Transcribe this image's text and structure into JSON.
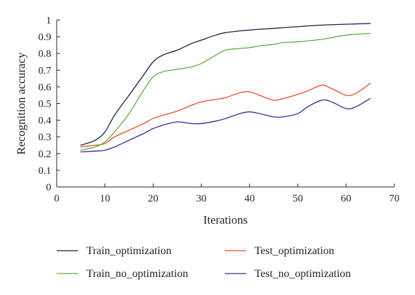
{
  "chart_data": {
    "type": "line",
    "xlabel": "Iterations",
    "ylabel": "Recognition accuracy",
    "xlim": [
      0,
      70
    ],
    "ylim": [
      0,
      1
    ],
    "x_ticks": [
      "0",
      "10",
      "20",
      "30",
      "40",
      "50",
      "60",
      "70"
    ],
    "y_ticks": [
      "0",
      "0.1",
      "0.2",
      "0.3",
      "0.4",
      "0.5",
      "0.6",
      "0.7",
      "0.8",
      "0.9",
      "1"
    ],
    "grid": false,
    "legend_position": "bottom",
    "x": [
      5,
      8,
      10,
      12,
      15,
      18,
      20,
      22,
      25,
      28,
      30,
      33,
      35,
      38,
      40,
      42,
      45,
      47,
      50,
      52,
      55,
      57,
      60,
      62,
      65
    ],
    "series": [
      {
        "name": "Train_optimization",
        "color": "#1a1a48",
        "values": [
          0.25,
          0.28,
          0.33,
          0.43,
          0.55,
          0.67,
          0.75,
          0.79,
          0.82,
          0.86,
          0.88,
          0.91,
          0.925,
          0.935,
          0.94,
          0.945,
          0.95,
          0.955,
          0.96,
          0.965,
          0.97,
          0.972,
          0.975,
          0.977,
          0.98
        ]
      },
      {
        "name": "Test_optimization",
        "color": "#e8491d",
        "values": [
          0.24,
          0.25,
          0.26,
          0.3,
          0.34,
          0.38,
          0.41,
          0.43,
          0.455,
          0.49,
          0.51,
          0.525,
          0.535,
          0.565,
          0.57,
          0.55,
          0.52,
          0.53,
          0.555,
          0.575,
          0.61,
          0.59,
          0.55,
          0.56,
          0.62
        ]
      },
      {
        "name": "Train_no_optimization",
        "color": "#5aad3c",
        "values": [
          0.22,
          0.24,
          0.27,
          0.33,
          0.44,
          0.58,
          0.66,
          0.69,
          0.705,
          0.72,
          0.74,
          0.79,
          0.82,
          0.83,
          0.835,
          0.845,
          0.855,
          0.865,
          0.87,
          0.875,
          0.885,
          0.895,
          0.91,
          0.915,
          0.92
        ]
      },
      {
        "name": "Test_no_optimization",
        "color": "#2e2a8e",
        "values": [
          0.21,
          0.215,
          0.22,
          0.24,
          0.28,
          0.32,
          0.35,
          0.37,
          0.39,
          0.38,
          0.38,
          0.395,
          0.41,
          0.44,
          0.45,
          0.44,
          0.42,
          0.42,
          0.44,
          0.48,
          0.52,
          0.51,
          0.47,
          0.48,
          0.53
        ]
      }
    ]
  }
}
